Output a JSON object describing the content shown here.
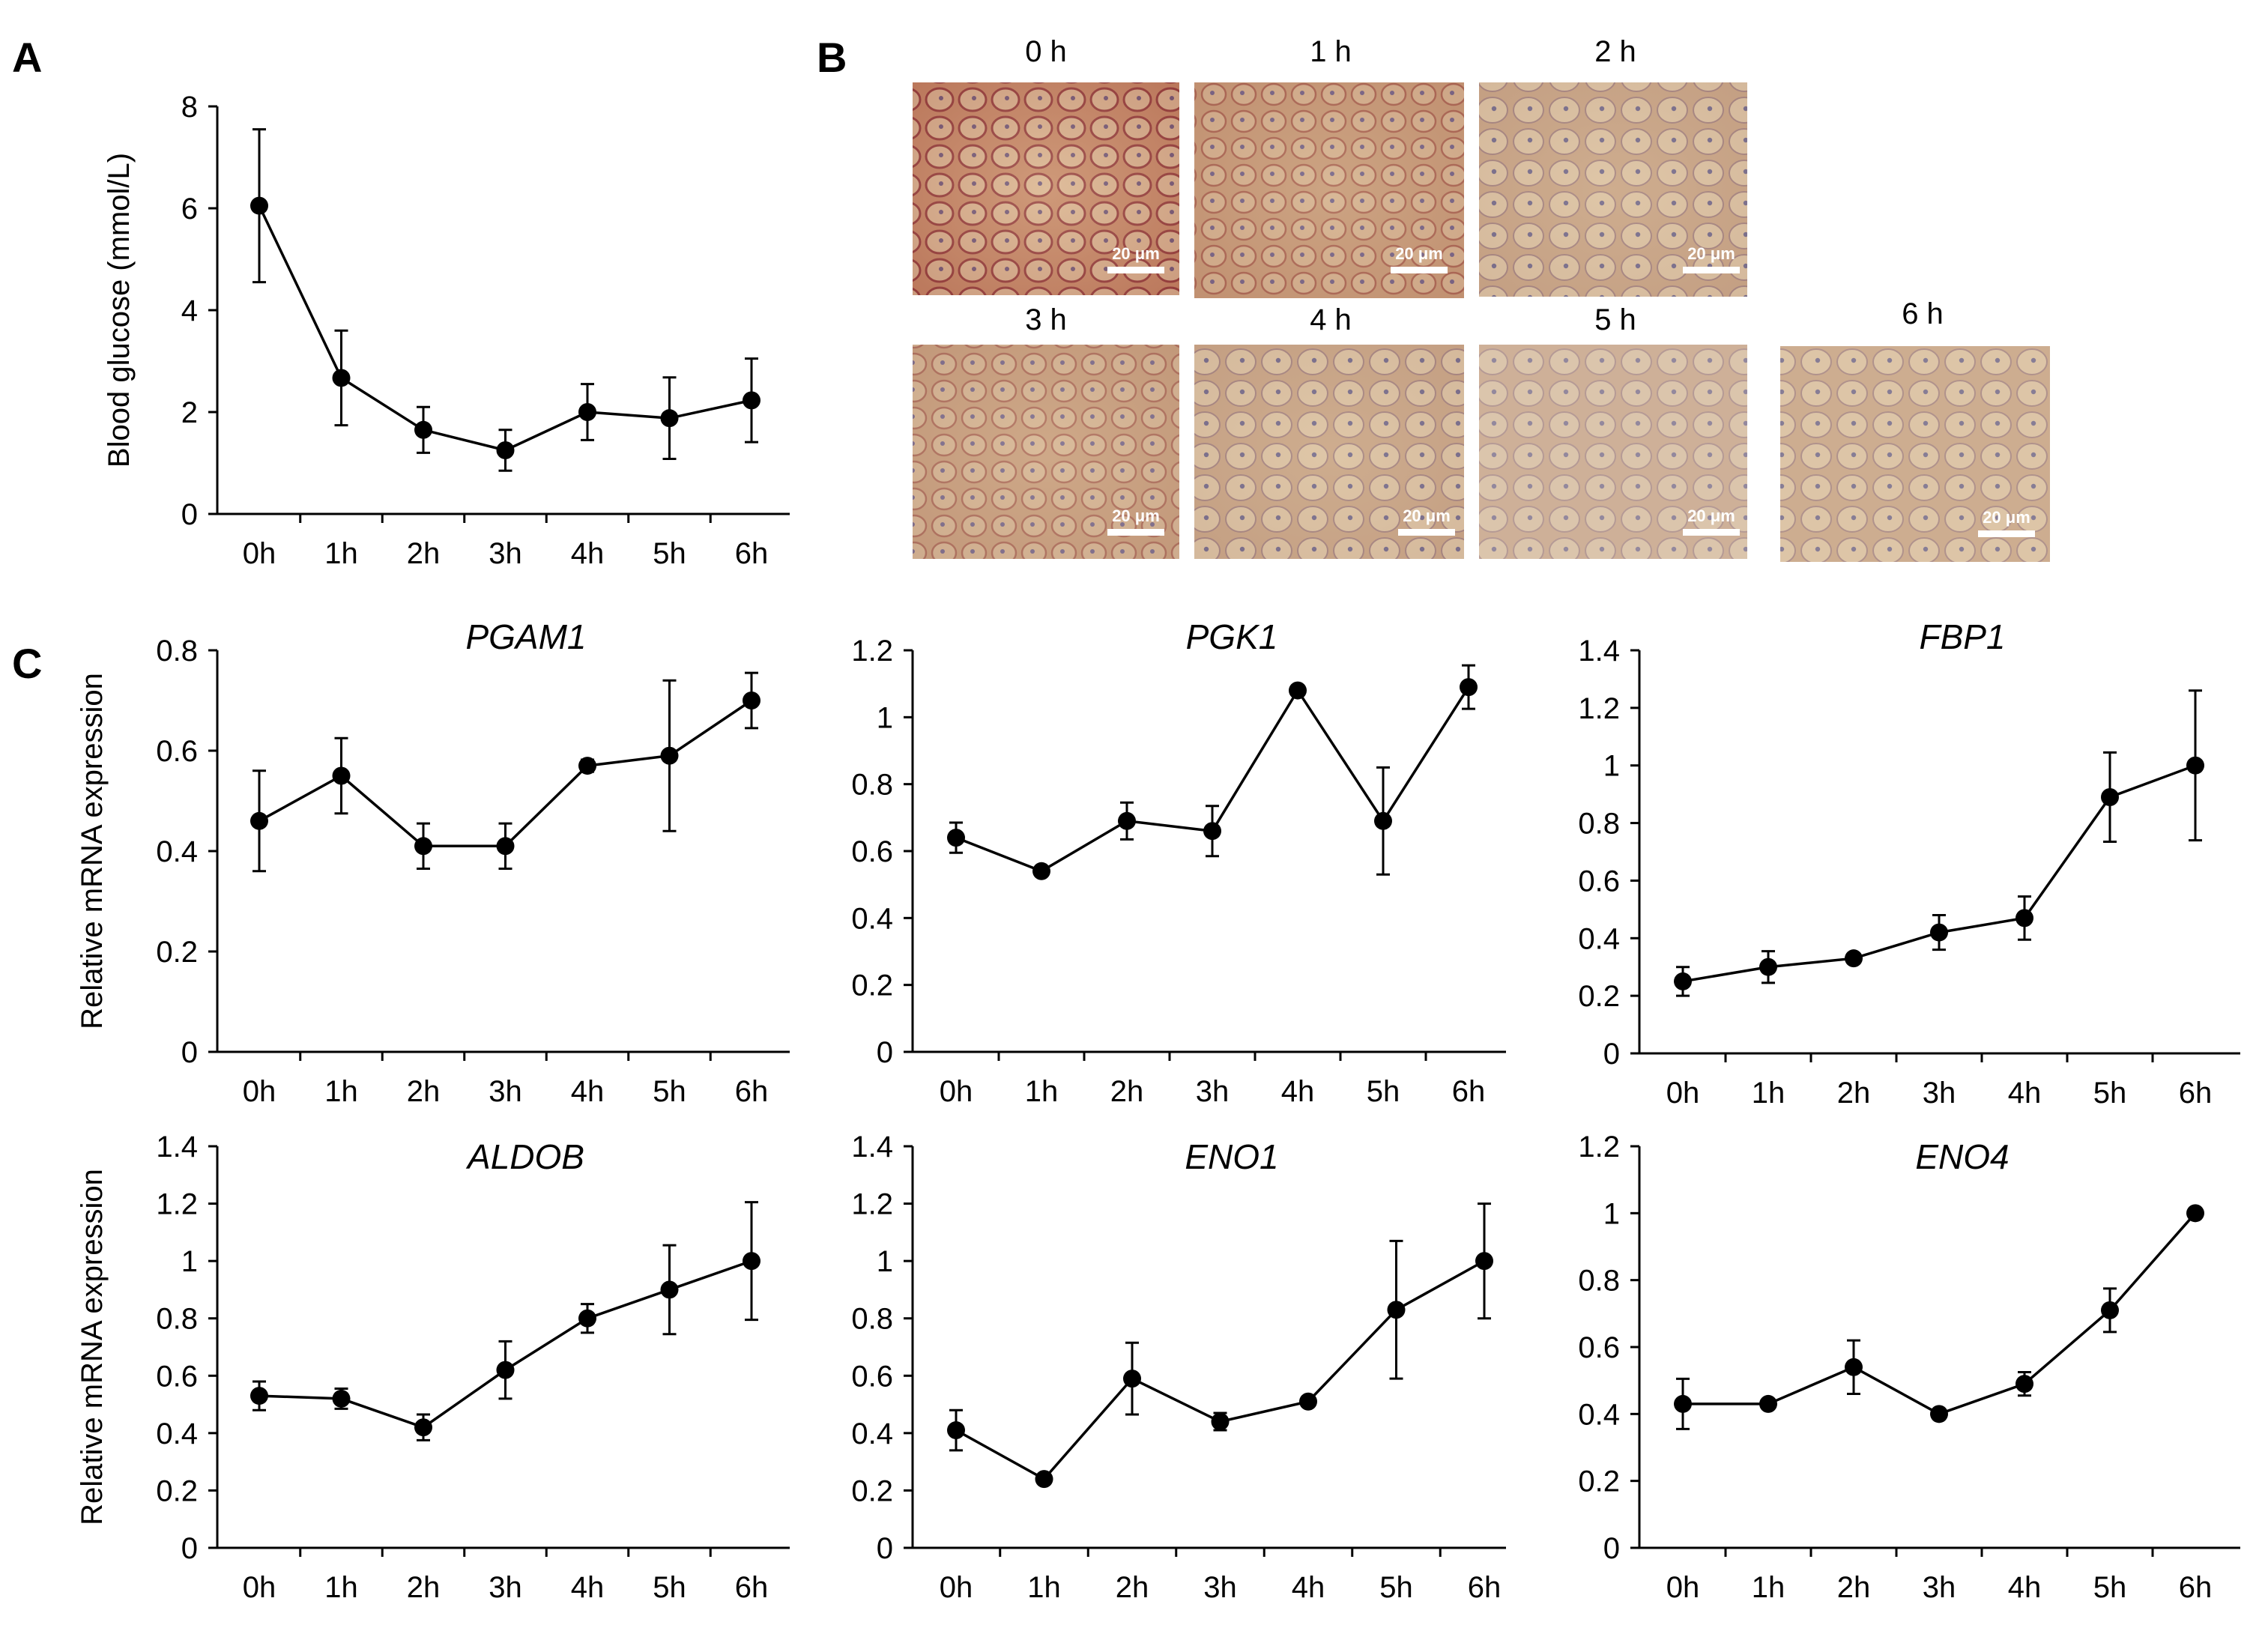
{
  "panels": {
    "a": "A",
    "b": "B",
    "c": "C"
  },
  "micrograph_labels": [
    "0 h",
    "1 h",
    "2 h",
    "3 h",
    "4 h",
    "5 h",
    "6 h"
  ],
  "scale_bar_label": "20 μm",
  "chart_data": [
    {
      "id": "A",
      "type": "line",
      "title": "",
      "xlabel": "",
      "ylabel": "Blood glucose (mmol/L)",
      "categories": [
        "0h",
        "1h",
        "2h",
        "3h",
        "4h",
        "5h",
        "6h"
      ],
      "values": [
        6.05,
        2.67,
        1.65,
        1.25,
        2.0,
        1.88,
        2.23
      ],
      "errors": [
        1.5,
        0.93,
        0.45,
        0.4,
        0.55,
        0.8,
        0.82
      ],
      "ylim": [
        0,
        8
      ],
      "yticks": [
        "0",
        "2",
        "4",
        "6",
        "8"
      ]
    },
    {
      "id": "PGAM1",
      "type": "line",
      "title": "PGAM1",
      "ylabel": "Relative mRNA expression",
      "categories": [
        "0h",
        "1h",
        "2h",
        "3h",
        "4h",
        "5h",
        "6h"
      ],
      "values": [
        0.46,
        0.55,
        0.41,
        0.41,
        0.57,
        0.59,
        0.7
      ],
      "errors": [
        0.1,
        0.075,
        0.045,
        0.045,
        0.012,
        0.15,
        0.055
      ],
      "ylim": [
        0,
        0.8
      ],
      "yticks": [
        "0",
        "0.2",
        "0.4",
        "0.6",
        "0.8"
      ]
    },
    {
      "id": "PGK1",
      "type": "line",
      "title": "PGK1",
      "ylabel": "",
      "categories": [
        "0h",
        "1h",
        "2h",
        "3h",
        "4h",
        "5h",
        "6h"
      ],
      "values": [
        0.64,
        0.54,
        0.69,
        0.66,
        1.08,
        0.69,
        1.09
      ],
      "errors": [
        0.045,
        0.01,
        0.055,
        0.075,
        0.005,
        0.16,
        0.065
      ],
      "ylim": [
        0,
        1.2
      ],
      "yticks": [
        "0",
        "0.2",
        "0.4",
        "0.6",
        "0.8",
        "1",
        "1.2"
      ]
    },
    {
      "id": "FBP1",
      "type": "line",
      "title": "FBP1",
      "ylabel": "",
      "categories": [
        "0h",
        "1h",
        "2h",
        "3h",
        "4h",
        "5h",
        "6h"
      ],
      "values": [
        0.25,
        0.3,
        0.33,
        0.42,
        0.47,
        0.89,
        1.0
      ],
      "errors": [
        0.05,
        0.055,
        0.015,
        0.06,
        0.075,
        0.155,
        0.26
      ],
      "ylim": [
        0,
        1.4
      ],
      "yticks": [
        "0",
        "0.2",
        "0.4",
        "0.6",
        "0.8",
        "1",
        "1.2",
        "1.4"
      ]
    },
    {
      "id": "ALDOB",
      "type": "line",
      "title": "ALDOB",
      "ylabel": "Relative mRNA expression",
      "categories": [
        "0h",
        "1h",
        "2h",
        "3h",
        "4h",
        "5h",
        "6h"
      ],
      "values": [
        0.53,
        0.52,
        0.42,
        0.62,
        0.8,
        0.9,
        1.0
      ],
      "errors": [
        0.05,
        0.035,
        0.045,
        0.1,
        0.05,
        0.155,
        0.205
      ],
      "ylim": [
        0,
        1.4
      ],
      "yticks": [
        "0",
        "0.2",
        "0.4",
        "0.6",
        "0.8",
        "1",
        "1.2",
        "1.4"
      ]
    },
    {
      "id": "ENO1",
      "type": "line",
      "title": "ENO1",
      "ylabel": "",
      "categories": [
        "0h",
        "1h",
        "2h",
        "3h",
        "4h",
        "5h",
        "6h"
      ],
      "values": [
        0.41,
        0.24,
        0.59,
        0.44,
        0.51,
        0.83,
        1.0
      ],
      "errors": [
        0.07,
        0.005,
        0.125,
        0.03,
        0.01,
        0.24,
        0.2
      ],
      "ylim": [
        0,
        1.4
      ],
      "yticks": [
        "0",
        "0.2",
        "0.4",
        "0.6",
        "0.8",
        "1",
        "1.2",
        "1.4"
      ]
    },
    {
      "id": "ENO4",
      "type": "line",
      "title": "ENO4",
      "ylabel": "",
      "categories": [
        "0h",
        "1h",
        "2h",
        "3h",
        "4h",
        "5h",
        "6h"
      ],
      "values": [
        0.43,
        0.43,
        0.54,
        0.4,
        0.49,
        0.71,
        1.0
      ],
      "errors": [
        0.075,
        0.005,
        0.08,
        0.01,
        0.035,
        0.065,
        0.005
      ],
      "ylim": [
        0,
        1.2
      ],
      "yticks": [
        "0",
        "0.2",
        "0.4",
        "0.6",
        "0.8",
        "1",
        "1.2"
      ]
    }
  ]
}
